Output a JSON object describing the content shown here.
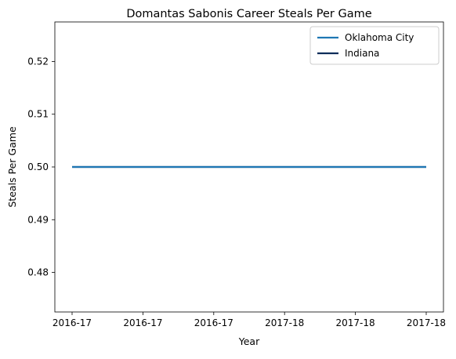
{
  "chart_data": {
    "type": "line",
    "title": "Domantas Sabonis Career Steals Per Game",
    "xlabel": "Year",
    "ylabel": "Steals Per Game",
    "x": [
      "2016-17",
      "2016-17",
      "2016-17",
      "2017-18",
      "2017-18",
      "2017-18"
    ],
    "ylim": [
      0.4725,
      0.5275
    ],
    "yticks": [
      "0.48",
      "0.49",
      "0.50",
      "0.51",
      "0.52"
    ],
    "grid": false,
    "legend_position": "top-right",
    "series": [
      {
        "name": "Oklahoma City",
        "color": "#1f77b4",
        "values": [
          0.5,
          0.5,
          0.5,
          0.5,
          0.5,
          0.5
        ]
      },
      {
        "name": "Indiana",
        "color": "#0c2d5a",
        "values": [
          0.5,
          0.5,
          0.5,
          0.5,
          0.5,
          0.5
        ]
      }
    ]
  }
}
